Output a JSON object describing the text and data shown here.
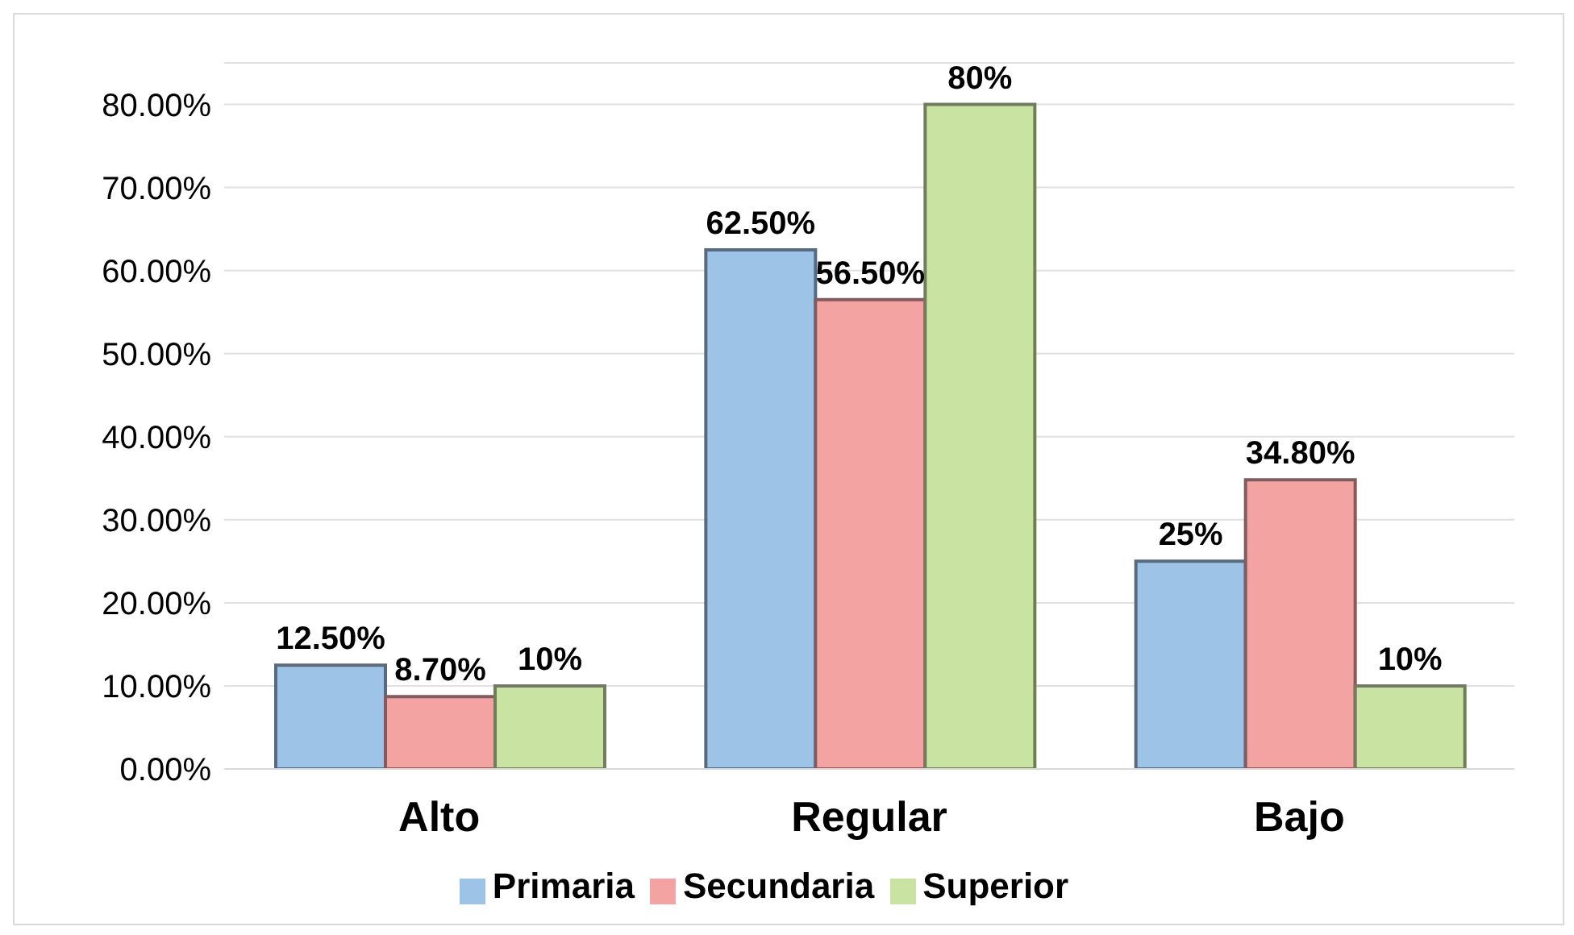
{
  "chart_data": {
    "type": "bar",
    "categories": [
      "Alto",
      "Regular",
      "Bajo"
    ],
    "series": [
      {
        "name": "Primaria",
        "color": "#9dc3e6",
        "values": [
          12.5,
          62.5,
          25
        ],
        "value_labels": [
          "12.50%",
          "62.50%",
          "25%"
        ]
      },
      {
        "name": "Secundaria",
        "color": "#f4a3a3",
        "values": [
          8.7,
          56.5,
          34.8
        ],
        "value_labels": [
          "8.70%",
          "56.50%",
          "34.80%"
        ]
      },
      {
        "name": "Superior",
        "color": "#c9e3a3",
        "values": [
          10,
          80,
          10
        ],
        "value_labels": [
          "10%",
          "80%",
          "10%"
        ]
      }
    ],
    "ylim": [
      0,
      85
    ],
    "yticks": [
      {
        "value": 0,
        "label": "0.00%"
      },
      {
        "value": 10,
        "label": "10.00%"
      },
      {
        "value": 20,
        "label": "20.00%"
      },
      {
        "value": 30,
        "label": "30.00%"
      },
      {
        "value": 40,
        "label": "40.00%"
      },
      {
        "value": 50,
        "label": "50.00%"
      },
      {
        "value": 60,
        "label": "60.00%"
      },
      {
        "value": 70,
        "label": "70.00%"
      },
      {
        "value": 80,
        "label": "80.00%"
      }
    ],
    "grid": "y",
    "legend": "bottom"
  }
}
